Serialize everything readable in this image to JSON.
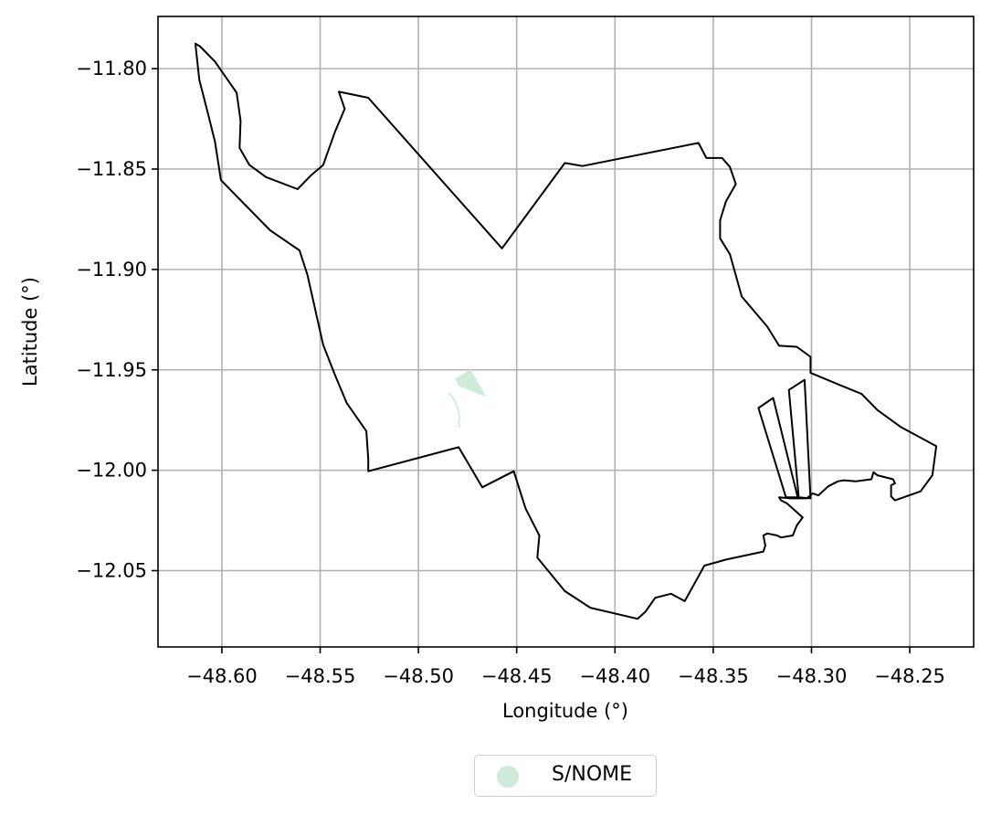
{
  "colors": {
    "boundary": "#000000",
    "feature_fill": "#cdeadb",
    "grid": "#b0b0b0"
  },
  "chart_data": {
    "type": "map",
    "xlabel": "Longitude (°)",
    "ylabel": "Latitude (°)",
    "xlim": [
      -48.6325,
      -48.2175
    ],
    "ylim": [
      -12.088,
      -11.774
    ],
    "grid": true,
    "x_ticks": [
      -48.6,
      -48.55,
      -48.5,
      -48.45,
      -48.4,
      -48.35,
      -48.3,
      -48.25
    ],
    "x_tick_labels": [
      "−48.60",
      "−48.55",
      "−48.50",
      "−48.45",
      "−48.40",
      "−48.35",
      "−48.30",
      "−48.25"
    ],
    "y_ticks": [
      -11.8,
      -11.85,
      -11.9,
      -11.95,
      -12.0,
      -12.05
    ],
    "y_tick_labels": [
      "−11.80",
      "−11.85",
      "−11.90",
      "−11.95",
      "−12.00",
      "−12.05"
    ],
    "legend": {
      "position": "bottom-center",
      "entries": [
        "S/NOME"
      ]
    },
    "boundary": [
      [
        -48.6135,
        -11.7875
      ],
      [
        -48.611,
        -11.789
      ],
      [
        -48.6035,
        -11.7965
      ],
      [
        -48.5925,
        -11.812
      ],
      [
        -48.5905,
        -11.826
      ],
      [
        -48.591,
        -11.8395
      ],
      [
        -48.586,
        -11.848
      ],
      [
        -48.5775,
        -11.854
      ],
      [
        -48.5615,
        -11.86
      ],
      [
        -48.5545,
        -11.853
      ],
      [
        -48.5485,
        -11.848
      ],
      [
        -48.5425,
        -11.8315
      ],
      [
        -48.5375,
        -11.82
      ],
      [
        -48.5405,
        -11.8115
      ],
      [
        -48.5255,
        -11.8145
      ],
      [
        -48.4575,
        -11.8895
      ],
      [
        -48.4255,
        -11.847
      ],
      [
        -48.4165,
        -11.8485
      ],
      [
        -48.3575,
        -11.837
      ],
      [
        -48.3535,
        -11.8445
      ],
      [
        -48.3455,
        -11.8445
      ],
      [
        -48.3415,
        -11.849
      ],
      [
        -48.3385,
        -11.8575
      ],
      [
        -48.3435,
        -11.866
      ],
      [
        -48.3465,
        -11.8755
      ],
      [
        -48.3465,
        -11.8845
      ],
      [
        -48.3415,
        -11.8925
      ],
      [
        -48.3355,
        -11.9135
      ],
      [
        -48.3225,
        -11.9285
      ],
      [
        -48.3165,
        -11.938
      ],
      [
        -48.3075,
        -11.9385
      ],
      [
        -48.3005,
        -11.9435
      ],
      [
        -48.3005,
        -11.9515
      ],
      [
        -48.2845,
        -11.958
      ],
      [
        -48.2745,
        -11.962
      ],
      [
        -48.2665,
        -11.97
      ],
      [
        -48.2545,
        -11.9785
      ],
      [
        -48.2365,
        -11.988
      ],
      [
        -48.2385,
        -12.0025
      ],
      [
        -48.2445,
        -12.0105
      ],
      [
        -48.2575,
        -12.015
      ],
      [
        -48.2595,
        -12.013
      ],
      [
        -48.2595,
        -12.0075
      ],
      [
        -48.2575,
        -12.0065
      ],
      [
        -48.2585,
        -12.0045
      ],
      [
        -48.2665,
        -12.0025
      ],
      [
        -48.2685,
        -12.001
      ],
      [
        -48.2695,
        -12.0045
      ],
      [
        -48.2775,
        -12.0055
      ],
      [
        -48.2835,
        -12.005
      ],
      [
        -48.2865,
        -12.0055
      ],
      [
        -48.2915,
        -12.008
      ],
      [
        -48.2965,
        -12.0125
      ],
      [
        -48.2995,
        -12.0115
      ],
      [
        -48.3005,
        -12.0125
      ],
      [
        -48.3025,
        -12.014
      ],
      [
        -48.3105,
        -12.014
      ],
      [
        -48.3165,
        -12.0135
      ],
      [
        -48.3155,
        -12.015
      ],
      [
        -48.3125,
        -12.0165
      ],
      [
        -48.3045,
        -12.0235
      ],
      [
        -48.3075,
        -12.0275
      ],
      [
        -48.3095,
        -12.0325
      ],
      [
        -48.3155,
        -12.0335
      ],
      [
        -48.3175,
        -12.0325
      ],
      [
        -48.3225,
        -12.0315
      ],
      [
        -48.3245,
        -12.0325
      ],
      [
        -48.3235,
        -12.0375
      ],
      [
        -48.3245,
        -12.0405
      ],
      [
        -48.3435,
        -12.0445
      ],
      [
        -48.3545,
        -12.0475
      ],
      [
        -48.3645,
        -12.0652
      ],
      [
        -48.3715,
        -12.0615
      ],
      [
        -48.3795,
        -12.0635
      ],
      [
        -48.3845,
        -12.0705
      ],
      [
        -48.3885,
        -12.074
      ],
      [
        -48.4125,
        -12.0685
      ],
      [
        -48.4255,
        -12.0602
      ],
      [
        -48.4395,
        -12.0435
      ],
      [
        -48.4385,
        -12.0325
      ],
      [
        -48.4455,
        -12.019
      ],
      [
        -48.4515,
        -12.0005
      ],
      [
        -48.4675,
        -12.0085
      ],
      [
        -48.4795,
        -11.9885
      ],
      [
        -48.5255,
        -12.0005
      ],
      [
        -48.5255,
        -11.9945
      ],
      [
        -48.5265,
        -11.9805
      ],
      [
        -48.5365,
        -11.9665
      ],
      [
        -48.5425,
        -11.9525
      ],
      [
        -48.5485,
        -11.9375
      ],
      [
        -48.5565,
        -11.9025
      ],
      [
        -48.5605,
        -11.8905
      ],
      [
        -48.5755,
        -11.8805
      ],
      [
        -48.5945,
        -11.8615
      ],
      [
        -48.6005,
        -11.8555
      ],
      [
        -48.6035,
        -11.8365
      ],
      [
        -48.6065,
        -11.8245
      ],
      [
        -48.6115,
        -11.8055
      ],
      [
        -48.6135,
        -11.7875
      ]
    ],
    "strip_1": [
      [
        -48.327,
        -11.969
      ],
      [
        -48.3195,
        -11.964
      ],
      [
        -48.307,
        -12.0135
      ],
      [
        -48.313,
        -12.0135
      ],
      [
        -48.327,
        -11.969
      ]
    ],
    "strip_2": [
      [
        -48.3115,
        -11.96
      ],
      [
        -48.3035,
        -11.955
      ],
      [
        -48.3005,
        -12.014
      ],
      [
        -48.3065,
        -12.0135
      ],
      [
        -48.3115,
        -11.96
      ]
    ],
    "feature": [
      [
        -48.4812,
        -11.9545
      ],
      [
        -48.4735,
        -11.9495
      ],
      [
        -48.4655,
        -11.9635
      ],
      [
        -48.4795,
        -11.958
      ],
      [
        -48.4812,
        -11.9545
      ]
    ],
    "feature_streams": [
      [
        [
          -48.4845,
          -11.9615
        ],
        [
          -48.482,
          -11.9645
        ],
        [
          -48.4805,
          -11.968
        ],
        [
          -48.4795,
          -11.9705
        ],
        [
          -48.479,
          -11.974
        ]
      ],
      [
        [
          -48.479,
          -11.974
        ],
        [
          -48.4795,
          -11.9765
        ],
        [
          -48.479,
          -11.9785
        ]
      ]
    ]
  }
}
